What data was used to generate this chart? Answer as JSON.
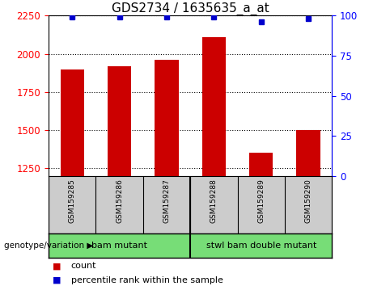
{
  "title": "GDS2734 / 1635635_a_at",
  "samples": [
    "GSM159285",
    "GSM159286",
    "GSM159287",
    "GSM159288",
    "GSM159289",
    "GSM159290"
  ],
  "counts": [
    1900,
    1920,
    1960,
    2110,
    1350,
    1500
  ],
  "percentile_ranks": [
    99,
    99,
    99,
    99,
    96,
    98
  ],
  "ylim_left": [
    1200,
    2250
  ],
  "yticks_left": [
    1250,
    1500,
    1750,
    2000,
    2250
  ],
  "ylim_right": [
    0,
    100
  ],
  "yticks_right": [
    0,
    25,
    50,
    75,
    100
  ],
  "bar_color": "#cc0000",
  "dot_color": "#0000cc",
  "group1_label": "bam mutant",
  "group2_label": "stwl bam double mutant",
  "group1_indices": [
    0,
    1,
    2
  ],
  "group2_indices": [
    3,
    4,
    5
  ],
  "legend_count_label": "count",
  "legend_pct_label": "percentile rank within the sample",
  "group_label": "genotype/variation",
  "background_color": "#ffffff",
  "plot_bg_color": "#ffffff",
  "group_box_color": "#77dd77",
  "sample_box_color": "#cccccc",
  "title_fontsize": 11,
  "tick_fontsize": 8.5,
  "label_fontsize": 8
}
